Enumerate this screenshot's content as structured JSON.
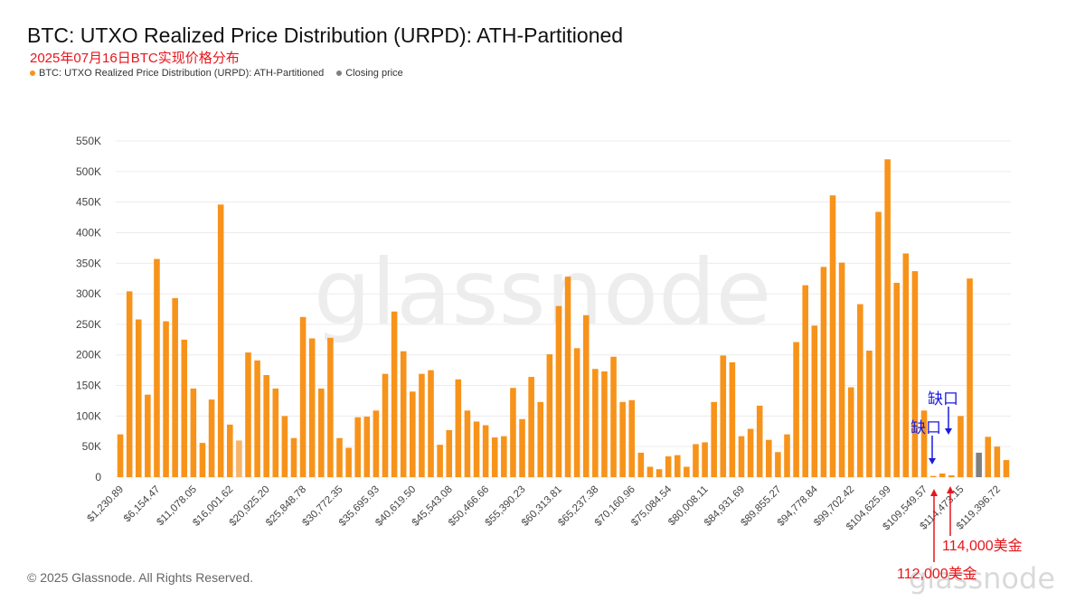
{
  "header": {
    "title": "BTC: UTXO Realized Price Distribution (URPD): ATH-Partitioned",
    "subtitle": "2025年07月16日BTC实现价格分布"
  },
  "legend": [
    {
      "label": "BTC: UTXO Realized Price Distribution (URPD): ATH-Partitioned",
      "color": "#f7931a"
    },
    {
      "label": "Closing price",
      "color": "#808080"
    }
  ],
  "footer": {
    "copyright": "© 2025 Glassnode. All Rights Reserved.",
    "brand": "glassnode"
  },
  "annotations": {
    "gap_label_1": "缺口",
    "gap_label_2": "缺口",
    "price_label_112k": "112,000美金",
    "price_label_114k": "114,000美金"
  },
  "colors": {
    "bar": "#f7931a",
    "bar_faded": "#f8b468",
    "closing_price": "#808080",
    "annotation_blue": "#1a1ae0",
    "annotation_red": "#e8151b"
  },
  "chart_data": {
    "type": "bar",
    "title": "BTC: UTXO Realized Price Distribution (URPD): ATH-Partitioned",
    "xlabel": "",
    "ylabel": "",
    "ylim": [
      0,
      550000
    ],
    "yticks": [
      "0",
      "50K",
      "100K",
      "150K",
      "200K",
      "250K",
      "300K",
      "350K",
      "400K",
      "450K",
      "500K",
      "550K"
    ],
    "xtick_labels": [
      "$1,230.89",
      "$6,154.47",
      "$11,078.05",
      "$16,001.62",
      "$20,925.20",
      "$25,848.78",
      "$30,772.35",
      "$35,695.93",
      "$40,619.50",
      "$45,543.08",
      "$50,466.66",
      "$55,390.23",
      "$60,313.81",
      "$65,237.38",
      "$70,160.96",
      "$75,084.54",
      "$80,008.11",
      "$84,931.69",
      "$89,855.27",
      "$94,778.84",
      "$99,702.42",
      "$104,625.99",
      "$109,549.57",
      "$114,473.15",
      "$119,396.72"
    ],
    "grid": true,
    "closing_price_index": 94,
    "faded_bar_index": 13,
    "values": [
      70000,
      304000,
      258000,
      135000,
      357000,
      255000,
      293000,
      225000,
      145000,
      56000,
      127000,
      446000,
      86000,
      60000,
      204000,
      191000,
      167000,
      145000,
      100000,
      64000,
      262000,
      227000,
      145000,
      228000,
      64000,
      48000,
      98000,
      99000,
      109000,
      169000,
      271000,
      206000,
      140000,
      169000,
      175000,
      53000,
      77000,
      160000,
      109000,
      91000,
      85000,
      65000,
      67000,
      146000,
      95000,
      164000,
      123000,
      201000,
      280000,
      328000,
      211000,
      265000,
      177000,
      173000,
      197000,
      123000,
      126000,
      40000,
      17000,
      13000,
      34000,
      36000,
      17000,
      54000,
      57000,
      123000,
      199000,
      188000,
      67000,
      79000,
      117000,
      61000,
      41000,
      70000,
      221000,
      314000,
      248000,
      344000,
      461000,
      351000,
      147000,
      283000,
      207000,
      434000,
      520000,
      318000,
      366000,
      337000,
      109000,
      2000,
      6000,
      3000,
      100000,
      325000,
      40000,
      66000,
      50000,
      28000
    ]
  }
}
